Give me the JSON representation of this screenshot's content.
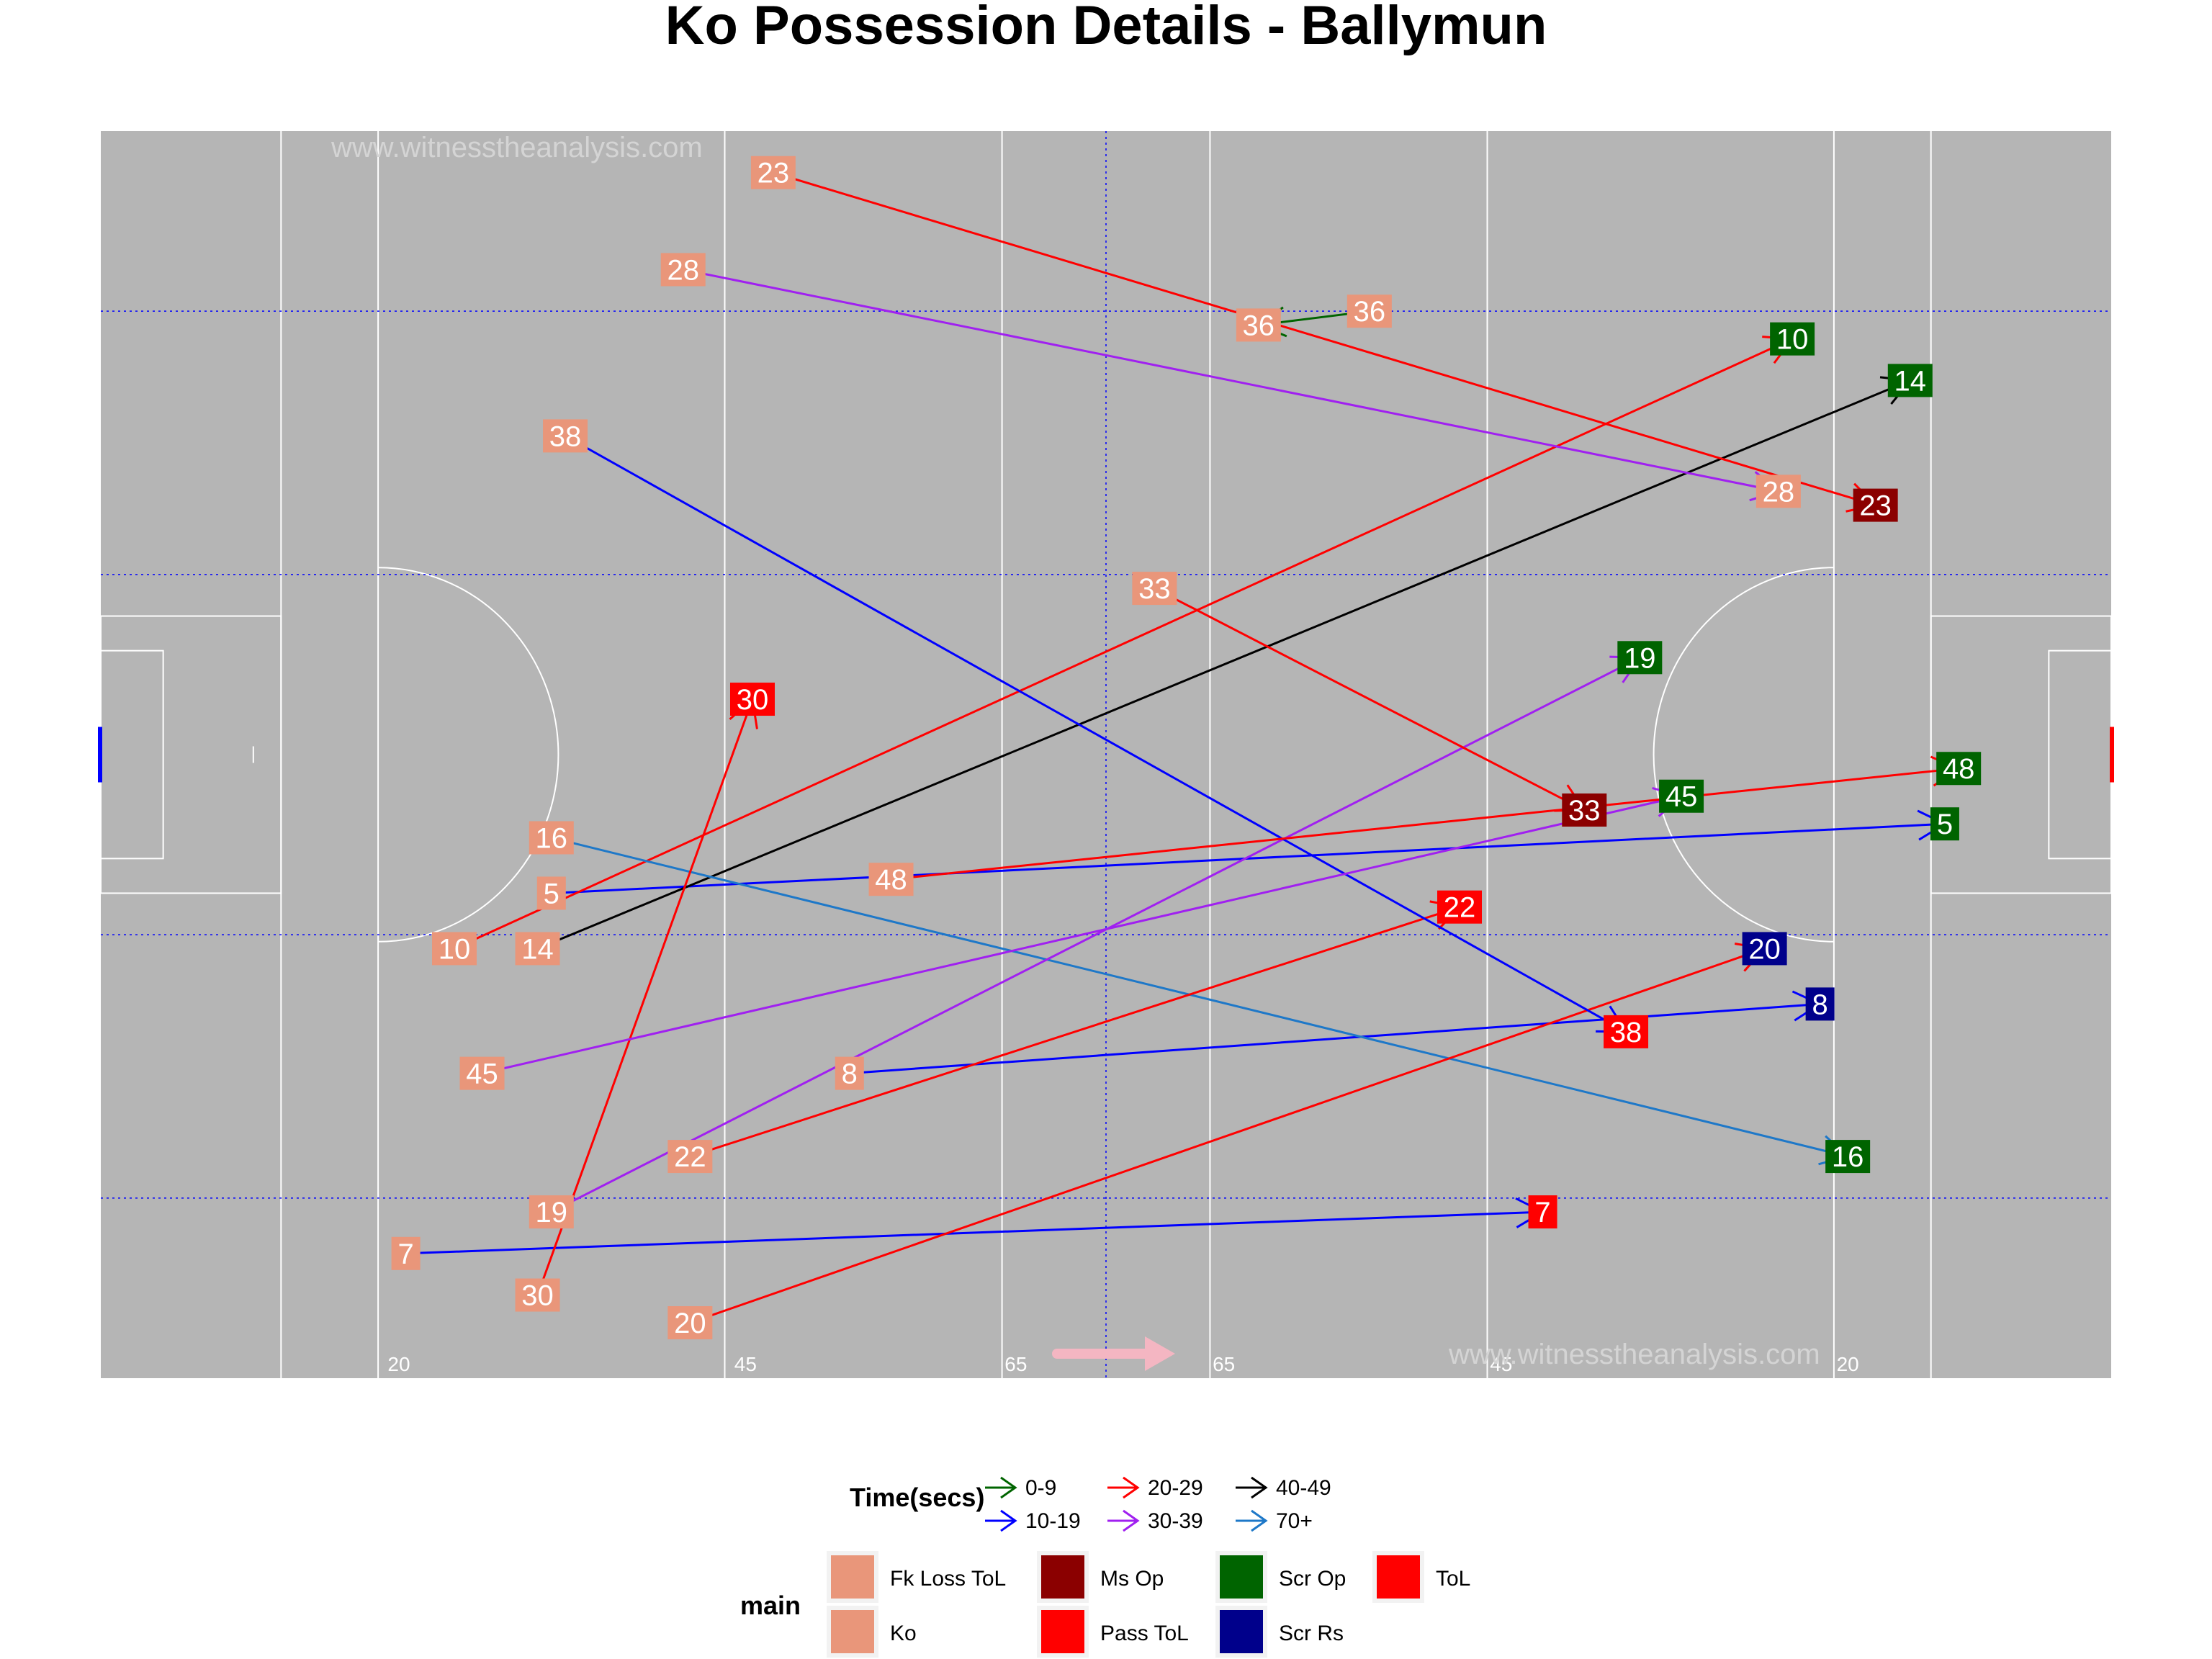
{
  "chart_data": {
    "type": "scatter",
    "title": "Ko Possession Details - Ballymun",
    "watermark": "www.witnesstheanalysis.com",
    "xlim": [
      0,
      145
    ],
    "ylim": [
      0,
      90
    ],
    "direction_arrow_color": "#f4b6c2",
    "pitch": {
      "background": "#b5b5b5",
      "line_color": "#ffffff",
      "zone_line_color": "#0000ff",
      "distance_marks": [
        "20",
        "45",
        "65",
        "65",
        "45",
        "20"
      ]
    },
    "legend_time": {
      "title": "Time(secs)",
      "items": [
        {
          "label": "0-9",
          "color": "#006400"
        },
        {
          "label": "10-19",
          "color": "#0000ff"
        },
        {
          "label": "20-29",
          "color": "#ff0000"
        },
        {
          "label": "30-39",
          "color": "#a020f0"
        },
        {
          "label": "40-49",
          "color": "#000000"
        },
        {
          "label": "70+",
          "color": "#1e78c8"
        }
      ]
    },
    "legend_main": {
      "title": "main",
      "items": [
        {
          "label": "Fk Loss ToL",
          "color": "#e9967a"
        },
        {
          "label": "Ko",
          "color": "#e9967a"
        },
        {
          "label": "Ms Op",
          "color": "#8b0000"
        },
        {
          "label": "Pass ToL",
          "color": "#ff0000"
        },
        {
          "label": "Scr Op",
          "color": "#006400"
        },
        {
          "label": "Scr Rs",
          "color": "#00008b"
        },
        {
          "label": "ToL",
          "color": "#ff0000"
        }
      ]
    },
    "series": [
      {
        "label": "5",
        "time": "10-19",
        "from": [
          32.5,
          35
        ],
        "to": [
          133,
          40
        ],
        "end": "Scr Op"
      },
      {
        "label": "7",
        "time": "10-19",
        "from": [
          22,
          9
        ],
        "to": [
          104,
          12
        ],
        "end": "ToL"
      },
      {
        "label": "8",
        "time": "10-19",
        "from": [
          54,
          22
        ],
        "to": [
          124,
          27
        ],
        "end": "Scr Rs"
      },
      {
        "label": "10",
        "time": "20-29",
        "from": [
          25.5,
          31
        ],
        "to": [
          122,
          75
        ],
        "end": "Scr Op"
      },
      {
        "label": "14",
        "time": "40-49",
        "from": [
          31.5,
          31
        ],
        "to": [
          130.5,
          72
        ],
        "end": "Scr Op"
      },
      {
        "label": "16",
        "time": "70+",
        "from": [
          32.5,
          39
        ],
        "to": [
          126,
          16
        ],
        "end": "Scr Op"
      },
      {
        "label": "19",
        "time": "30-39",
        "from": [
          32.5,
          12
        ],
        "to": [
          111,
          52
        ],
        "end": "Scr Op"
      },
      {
        "label": "20",
        "time": "20-29",
        "from": [
          42.5,
          4
        ],
        "to": [
          120,
          31
        ],
        "end": "Scr Rs"
      },
      {
        "label": "22",
        "time": "20-29",
        "from": [
          42.5,
          16
        ],
        "to": [
          98,
          34
        ],
        "end": "Pass ToL"
      },
      {
        "label": "23",
        "time": "20-29",
        "from": [
          48.5,
          87
        ],
        "to": [
          128,
          63
        ],
        "end": "Ms Op"
      },
      {
        "label": "28",
        "time": "30-39",
        "from": [
          42,
          80
        ],
        "to": [
          121,
          64
        ],
        "end": "Fk Loss ToL"
      },
      {
        "label": "30",
        "time": "20-29",
        "from": [
          31.5,
          6
        ],
        "to": [
          47,
          49
        ],
        "end": "ToL"
      },
      {
        "label": "33",
        "time": "20-29",
        "from": [
          76,
          57
        ],
        "to": [
          107,
          41
        ],
        "end": "Ms Op"
      },
      {
        "label": "36",
        "time": "0-9",
        "from": [
          91.5,
          77
        ],
        "to": [
          83.5,
          76
        ],
        "end": "Fk Loss ToL"
      },
      {
        "label": "38",
        "time": "10-19",
        "from": [
          33.5,
          68
        ],
        "to": [
          110,
          25
        ],
        "end": "ToL"
      },
      {
        "label": "45",
        "time": "30-39",
        "from": [
          27.5,
          22
        ],
        "to": [
          114,
          42
        ],
        "end": "Scr Op"
      },
      {
        "label": "48",
        "time": "20-29",
        "from": [
          57,
          36
        ],
        "to": [
          134,
          44
        ],
        "end": "Scr Op"
      }
    ]
  }
}
